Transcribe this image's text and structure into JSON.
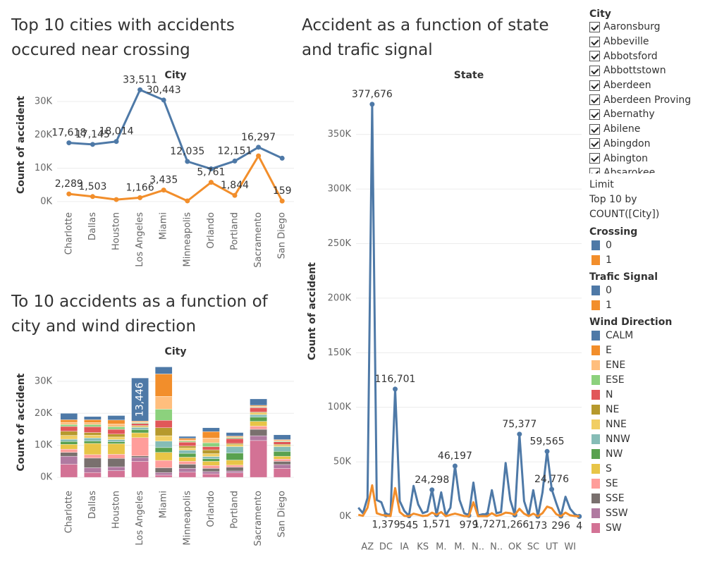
{
  "chart_data": [
    {
      "type": "line",
      "title": "Top 10 cities with accidents occured near crossing",
      "x_label": "City",
      "y_label": "Count of accident",
      "legend_title": "Crossing",
      "grid": true,
      "categories": [
        "Charlotte",
        "Dallas",
        "Houston",
        "Los Angeles",
        "Miami",
        "Minneapolis",
        "Orlando",
        "Portland",
        "Sacramento",
        "San Diego"
      ],
      "series": [
        {
          "name": "0",
          "color": "#4e79a7",
          "values": [
            17618,
            17145,
            18014,
            33511,
            30443,
            12035,
            9800,
            12151,
            16297,
            13000
          ],
          "value_labels": [
            "17,618",
            "17,145",
            "18,014",
            "33,511",
            "30,443",
            "12,035",
            null,
            "12,151",
            "16,297",
            null
          ]
        },
        {
          "name": "1",
          "color": "#f28e2b",
          "values": [
            2289,
            1503,
            600,
            1166,
            3435,
            200,
            5761,
            1844,
            13700,
            159
          ],
          "value_labels": [
            "2,289",
            "1,503",
            null,
            "1,166",
            "3,435",
            null,
            "5,761",
            "1,844",
            null,
            "159"
          ]
        }
      ],
      "ylim": [
        -1500,
        35500
      ],
      "yticks": [
        {
          "value": 0,
          "label": "0K"
        },
        {
          "value": 10000,
          "label": "10K"
        },
        {
          "value": 20000,
          "label": "20K"
        },
        {
          "value": 30000,
          "label": "30K"
        }
      ]
    },
    {
      "type": "stacked_bar",
      "title": "To 10 accidents as a function of city and wind direction",
      "x_label": "City",
      "y_label": "Count of accident",
      "legend_title": "Wind Direction",
      "grid": true,
      "categories": [
        "Charlotte",
        "Dallas",
        "Houston",
        "Los Angeles",
        "Miami",
        "Minneapolis",
        "Orlando",
        "Portland",
        "Sacramento",
        "San Diego"
      ],
      "series": [
        {
          "name": "CALM",
          "color": "#4e79a7",
          "values": [
            2000,
            1000,
            1400,
            13446,
            2200,
            600,
            1200,
            1100,
            2000,
            1500
          ],
          "value_labels": [
            null,
            null,
            null,
            "13,446",
            null,
            null,
            null,
            null,
            null,
            null
          ]
        },
        {
          "name": "E",
          "color": "#f28e2b",
          "values": [
            800,
            900,
            1200,
            300,
            7000,
            500,
            2000,
            300,
            300,
            300
          ]
        },
        {
          "name": "ENE",
          "color": "#ffbe7d",
          "values": [
            700,
            600,
            900,
            200,
            4000,
            400,
            1500,
            200,
            200,
            200
          ]
        },
        {
          "name": "ESE",
          "color": "#8cd17d",
          "values": [
            600,
            700,
            800,
            300,
            3500,
            300,
            1200,
            300,
            200,
            200
          ]
        },
        {
          "name": "N",
          "color": "#e15759",
          "values": [
            1500,
            1800,
            1500,
            600,
            2300,
            1200,
            1000,
            1500,
            1400,
            800
          ]
        },
        {
          "name": "NE",
          "color": "#b6992d",
          "values": [
            1300,
            800,
            900,
            300,
            2500,
            600,
            1200,
            400,
            300,
            300
          ]
        },
        {
          "name": "NNE",
          "color": "#f1ce63",
          "values": [
            1200,
            900,
            800,
            300,
            1700,
            700,
            900,
            600,
            500,
            400
          ]
        },
        {
          "name": "NNW",
          "color": "#86bcb6",
          "values": [
            700,
            1000,
            700,
            700,
            2000,
            1000,
            700,
            2000,
            800,
            1500
          ]
        },
        {
          "name": "NW",
          "color": "#59a14f",
          "values": [
            900,
            700,
            600,
            1000,
            1500,
            1200,
            800,
            2200,
            1300,
            1500
          ]
        },
        {
          "name": "S",
          "color": "#e8c547",
          "values": [
            1500,
            3500,
            3300,
            1500,
            2500,
            1300,
            1300,
            1600,
            1500,
            900
          ]
        },
        {
          "name": "SE",
          "color": "#ff9d9a",
          "values": [
            1000,
            1100,
            1300,
            5700,
            2300,
            900,
            900,
            600,
            1000,
            700
          ]
        },
        {
          "name": "SSE",
          "color": "#79706e",
          "values": [
            1200,
            3000,
            2600,
            500,
            1500,
            1300,
            1000,
            1200,
            2000,
            1000
          ]
        },
        {
          "name": "SSW",
          "color": "#b07aa1",
          "values": [
            2500,
            1500,
            1200,
            1200,
            800,
            1200,
            700,
            600,
            1500,
            1200
          ]
        },
        {
          "name": "SW",
          "color": "#d37295",
          "values": [
            4100,
            1500,
            2100,
            5000,
            700,
            1600,
            1100,
            1400,
            11500,
            2800
          ]
        }
      ],
      "ylim": [
        -2400,
        36800
      ],
      "yticks": [
        {
          "value": 0,
          "label": "0K"
        },
        {
          "value": 10000,
          "label": "10K"
        },
        {
          "value": 20000,
          "label": "20K"
        },
        {
          "value": 30000,
          "label": "30K"
        }
      ]
    },
    {
      "type": "line",
      "title": "Accident as a function of state and trafic signal",
      "x_label": "State",
      "y_label": "Count of accident",
      "legend_title": "Trafic Signal",
      "grid": true,
      "categories": [
        null,
        null,
        "AZ",
        null,
        null,
        null,
        "DC",
        null,
        null,
        null,
        "IA",
        null,
        null,
        null,
        "KS",
        null,
        null,
        null,
        "M.",
        null,
        null,
        null,
        "M.",
        null,
        null,
        null,
        "N..",
        null,
        null,
        null,
        "N..",
        null,
        null,
        null,
        "OK",
        null,
        null,
        null,
        "SC",
        null,
        null,
        null,
        "UT",
        null,
        null,
        null,
        "WI",
        null,
        null
      ],
      "series": [
        {
          "name": "0",
          "color": "#4e79a7",
          "values": [
            8000,
            3000,
            17000,
            377676,
            15000,
            13000,
            1379,
            2000,
            116701,
            14000,
            5000,
            545,
            28000,
            11000,
            3000,
            4500,
            24298,
            1571,
            22000,
            1000,
            8000,
            46197,
            15000,
            3000,
            979,
            31000,
            1000,
            2000,
            1727,
            24000,
            3000,
            4000,
            49000,
            15000,
            1266,
            75377,
            14000,
            1000,
            24000,
            173,
            22000,
            59565,
            24776,
            12000,
            296,
            18000,
            7000,
            2000,
            4
          ],
          "value_labels": [
            null,
            null,
            null,
            "377,676",
            null,
            null,
            "1,379",
            null,
            "116,701",
            null,
            null,
            "545",
            null,
            null,
            null,
            null,
            "24,298",
            "1,571",
            null,
            null,
            null,
            "46,197",
            null,
            null,
            "979",
            null,
            null,
            null,
            "1,727",
            null,
            null,
            null,
            null,
            null,
            "1,266",
            "75,377",
            null,
            null,
            null,
            "173",
            null,
            "59,565",
            "24,776",
            null,
            "296",
            null,
            null,
            null,
            "4"
          ]
        },
        {
          "name": "1",
          "color": "#f28e2b",
          "values": [
            1500,
            500,
            8000,
            28500,
            3000,
            1500,
            800,
            300,
            26000,
            4000,
            500,
            100,
            2500,
            1500,
            400,
            800,
            3500,
            1500,
            4000,
            200,
            1500,
            2500,
            1500,
            300,
            100,
            13000,
            100,
            300,
            200,
            3000,
            500,
            1500,
            3500,
            3000,
            1500,
            7000,
            2500,
            300,
            2500,
            100,
            3000,
            9000,
            7500,
            2000,
            100,
            3500,
            1000,
            300,
            50
          ]
        }
      ],
      "ylim": [
        -21000,
        397000
      ],
      "yticks": [
        {
          "value": 0,
          "label": "0K"
        },
        {
          "value": 50000,
          "label": "50K"
        },
        {
          "value": 100000,
          "label": "100K"
        },
        {
          "value": 150000,
          "label": "150K"
        },
        {
          "value": 200000,
          "label": "200K"
        },
        {
          "value": 250000,
          "label": "250K"
        },
        {
          "value": 300000,
          "label": "300K"
        },
        {
          "value": 350000,
          "label": "350K"
        }
      ]
    }
  ],
  "filters": {
    "city": {
      "title": "City",
      "items": [
        "Aaronsburg",
        "Abbeville",
        "Abbotsford",
        "Abbottstown",
        "Aberdeen",
        "Aberdeen Proving",
        "Abernathy",
        "Abilene",
        "Abingdon",
        "Abington",
        "Absarokee"
      ]
    },
    "limit": {
      "title": "Limit",
      "lines": [
        "Top 10 by",
        "COUNT([City])"
      ]
    }
  }
}
